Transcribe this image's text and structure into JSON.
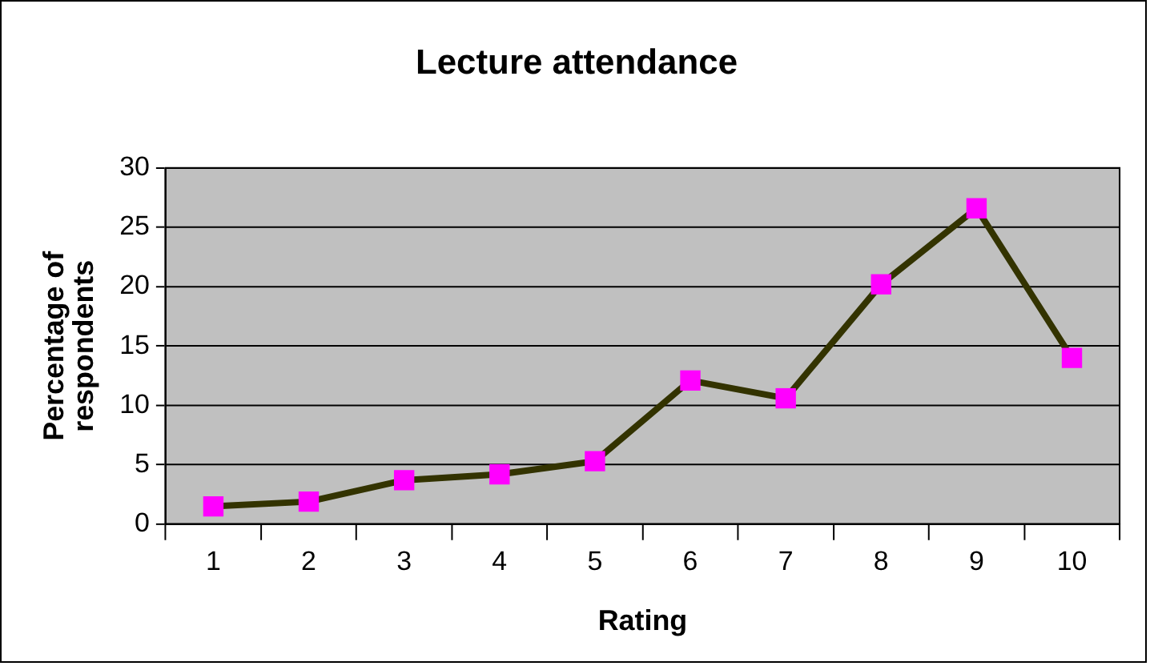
{
  "chart_data": {
    "type": "line",
    "title": "Lecture attendance",
    "xlabel": "Rating",
    "ylabel": "Percentage of respondents",
    "categories": [
      "1",
      "2",
      "3",
      "4",
      "5",
      "6",
      "7",
      "8",
      "9",
      "10"
    ],
    "series": [
      {
        "color": "#333300",
        "values": [
          1.5,
          1.9,
          3.7,
          4.2,
          5.3,
          12.1,
          10.6,
          20.2,
          26.6,
          14.0
        ]
      }
    ],
    "ylim": [
      0,
      30
    ],
    "yticks": [
      0,
      5,
      10,
      15,
      20,
      25,
      30
    ],
    "grid": "y",
    "legend": false,
    "marker": "square",
    "line_style": "solid"
  }
}
